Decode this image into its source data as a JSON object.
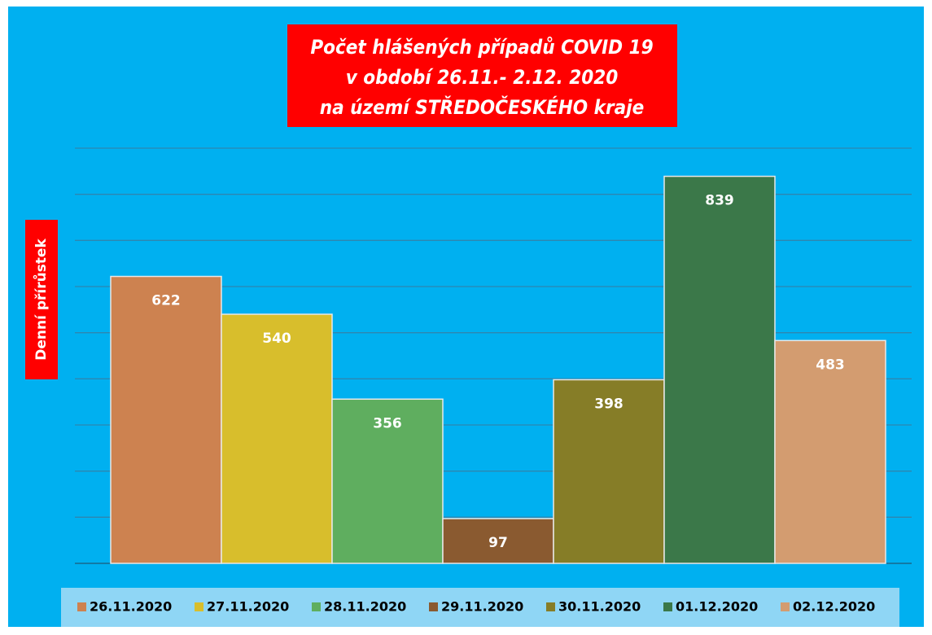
{
  "chart_data": {
    "type": "bar",
    "title": [
      "Počet hlášených případů COVID 19",
      "v období 26.11.- 2.12. 2020",
      "na území STŘEDOČESKÉHO kraje"
    ],
    "y_label": "Denní přírůstek",
    "categories": [
      "26.11.2020",
      "27.11.2020",
      "28.11.2020",
      "29.11.2020",
      "30.11.2020",
      "01.12.2020",
      "02.12.2020"
    ],
    "values": [
      622,
      540,
      356,
      97,
      398,
      839,
      483
    ],
    "colors": [
      "#cd8250",
      "#d8be2c",
      "#5fae5f",
      "#8a5a30",
      "#867d27",
      "#3b7849",
      "#d39c70"
    ],
    "ylim": [
      0,
      900
    ],
    "yticks": [
      0,
      100,
      200,
      300,
      400,
      500,
      600,
      700,
      800,
      900
    ],
    "grid": true,
    "legend": "bottom"
  }
}
